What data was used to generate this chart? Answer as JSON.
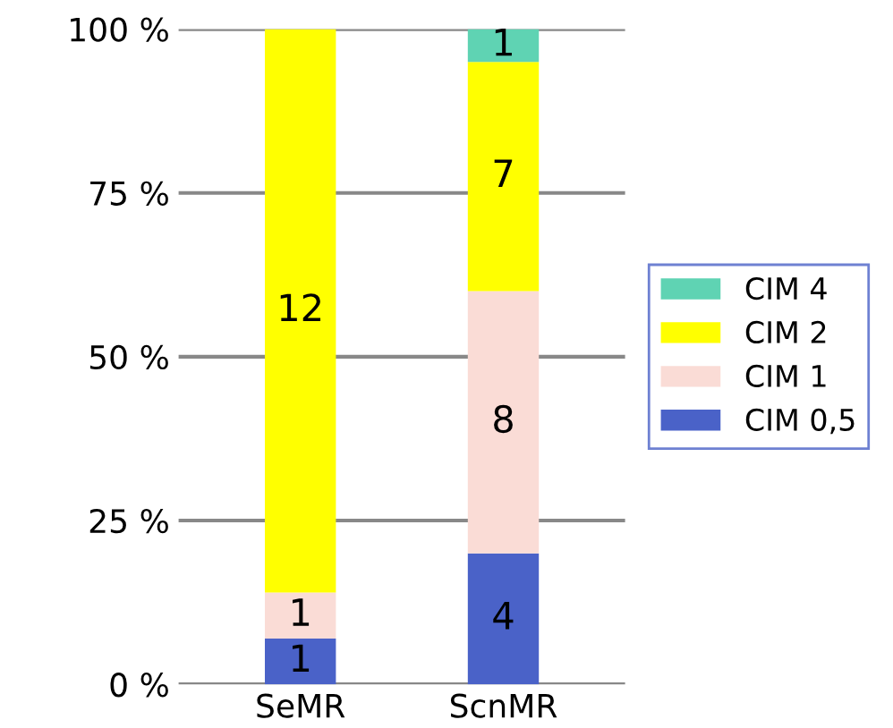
{
  "chart_data": {
    "type": "bar",
    "stacked": true,
    "categories": [
      "SeMR",
      "ScnMR"
    ],
    "series": [
      {
        "name": "CIM 0,5",
        "color": "#4a62c8",
        "values": [
          7,
          20
        ]
      },
      {
        "name": "CIM 1",
        "color": "#fadcd6",
        "values": [
          7,
          40
        ]
      },
      {
        "name": "CIM 2",
        "color": "#ffff00",
        "values": [
          86,
          35
        ]
      },
      {
        "name": "CIM 4",
        "color": "#5fd3b3",
        "values": [
          0,
          5
        ]
      }
    ],
    "annotations": [
      "1",
      "4",
      "1",
      "8",
      "12",
      "7",
      "1"
    ],
    "ylim": [
      0,
      100
    ],
    "yticks": [
      {
        "value": 0,
        "label": "0 %"
      },
      {
        "value": 25,
        "label": "25 %"
      },
      {
        "value": 50,
        "label": "50 %"
      },
      {
        "value": 75,
        "label": "75 %"
      },
      {
        "value": 100,
        "label": "100 %"
      }
    ],
    "grid": "y",
    "legend": "right"
  }
}
